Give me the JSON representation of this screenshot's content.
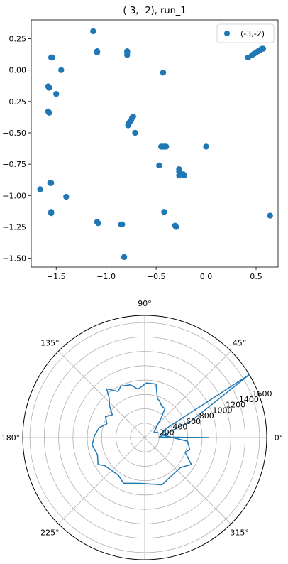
{
  "chart_data": [
    {
      "type": "scatter",
      "title": "(-3, -2), run_1",
      "xlabel": "",
      "ylabel": "",
      "xlim": [
        -1.75,
        0.72
      ],
      "ylim": [
        -1.57,
        0.4
      ],
      "xticks": [
        -1.5,
        -1.0,
        -0.5,
        0.0,
        0.5
      ],
      "xtick_labels": [
        "−1.5",
        "−1.0",
        "−0.5",
        "0.0",
        "0.5"
      ],
      "yticks": [
        0.25,
        0.0,
        -0.25,
        -0.5,
        -0.75,
        -1.0,
        -1.25,
        -1.5
      ],
      "ytick_labels": [
        "0.25",
        "0.00",
        "−0.25",
        "−0.50",
        "−0.75",
        "−1.00",
        "−1.25",
        "−1.50"
      ],
      "legend": {
        "placement": "top-right",
        "entries": [
          "(-3,-2)"
        ]
      },
      "color": "#1f77b4",
      "series": [
        {
          "name": "(-3,-2)",
          "points": [
            [
              -1.13,
              0.31
            ],
            [
              -1.55,
              0.1
            ],
            [
              -1.54,
              0.1
            ],
            [
              -1.45,
              0.0
            ],
            [
              -1.09,
              0.15
            ],
            [
              -1.09,
              0.14
            ],
            [
              -0.79,
              0.15
            ],
            [
              -0.79,
              0.14
            ],
            [
              -0.79,
              0.12
            ],
            [
              -1.58,
              -0.13
            ],
            [
              -1.57,
              -0.14
            ],
            [
              -1.5,
              -0.19
            ],
            [
              -1.58,
              -0.33
            ],
            [
              -1.57,
              -0.34
            ],
            [
              -0.78,
              -0.44
            ],
            [
              -0.77,
              -0.42
            ],
            [
              -0.76,
              -0.41
            ],
            [
              -0.75,
              -0.4
            ],
            [
              -0.74,
              -0.38
            ],
            [
              -0.73,
              -0.37
            ],
            [
              -0.71,
              -0.5
            ],
            [
              -0.43,
              -0.02
            ],
            [
              -0.45,
              -0.61
            ],
            [
              -0.43,
              -0.61
            ],
            [
              -0.42,
              -0.61
            ],
            [
              -0.4,
              -0.61
            ],
            [
              0.0,
              -0.61
            ],
            [
              -0.47,
              -0.76
            ],
            [
              -0.27,
              -0.79
            ],
            [
              -0.27,
              -0.81
            ],
            [
              -0.27,
              -0.84
            ],
            [
              -0.23,
              -0.83
            ],
            [
              -0.22,
              -0.84
            ],
            [
              -1.56,
              -0.9
            ],
            [
              -1.55,
              -0.9
            ],
            [
              -1.66,
              -0.95
            ],
            [
              -1.4,
              -1.01
            ],
            [
              -1.55,
              -1.13
            ],
            [
              -1.55,
              -1.14
            ],
            [
              -0.42,
              -1.13
            ],
            [
              0.64,
              -1.16
            ],
            [
              -1.09,
              -1.21
            ],
            [
              -1.08,
              -1.22
            ],
            [
              -0.85,
              -1.23
            ],
            [
              -0.84,
              -1.23
            ],
            [
              -0.31,
              -1.24
            ],
            [
              -0.3,
              -1.25
            ],
            [
              -0.82,
              -1.49
            ],
            [
              0.42,
              0.1
            ],
            [
              0.46,
              0.12
            ],
            [
              0.48,
              0.13
            ],
            [
              0.5,
              0.14
            ],
            [
              0.52,
              0.15
            ],
            [
              0.54,
              0.16
            ],
            [
              0.56,
              0.17
            ],
            [
              0.57,
              0.17
            ]
          ]
        }
      ]
    },
    {
      "type": "polar-line",
      "title": "",
      "angle_ticks_deg": [
        0,
        45,
        90,
        135,
        180,
        225,
        270,
        315
      ],
      "angle_tick_labels": [
        "0°",
        "45°",
        "90°",
        "135°",
        "180°",
        "225°",
        "270°",
        "315°"
      ],
      "rmax": 1700,
      "radial_ticks": [
        200,
        400,
        600,
        800,
        1000,
        1200,
        1400,
        1600
      ],
      "radial_tick_labels": [
        "200",
        "400",
        "600",
        "800",
        "1000",
        "1200",
        "1400",
        "1600"
      ],
      "radial_label_angle_deg": 22.5,
      "color": "#1f77b4",
      "series": [
        {
          "name": "",
          "points": [
            [
              0,
              900
            ],
            [
              2,
              200
            ],
            [
              10,
              300
            ],
            [
              20,
              700
            ],
            [
              31,
              1700
            ],
            [
              22,
              300
            ],
            [
              8,
              250
            ],
            [
              -5,
              600
            ],
            [
              -15,
              650
            ],
            [
              -20,
              600
            ],
            [
              -30,
              750
            ],
            [
              -40,
              650
            ],
            [
              -55,
              650
            ],
            [
              -70,
              700
            ],
            [
              -95,
              640
            ],
            [
              -115,
              700
            ],
            [
              -125,
              640
            ],
            [
              -145,
              680
            ],
            [
              -150,
              750
            ],
            [
              -160,
              700
            ],
            [
              -172,
              740
            ],
            [
              -182,
              700
            ],
            [
              -192,
              650
            ],
            [
              -200,
              560
            ],
            [
              -208,
              620
            ],
            [
              -215,
              550
            ],
            [
              -222,
              660
            ],
            [
              -228,
              740
            ],
            [
              -232,
              860
            ],
            [
              -240,
              740
            ],
            [
              -245,
              790
            ],
            [
              -255,
              760
            ],
            [
              -262,
              680
            ],
            [
              -272,
              760
            ],
            [
              -282,
              760
            ],
            [
              -288,
              570
            ],
            [
              -292,
              550
            ],
            [
              -298,
              500
            ],
            [
              -305,
              490
            ],
            [
              -310,
              360
            ],
            [
              -318,
              220
            ],
            [
              -330,
              150
            ],
            [
              -340,
              200
            ]
          ]
        }
      ]
    }
  ]
}
